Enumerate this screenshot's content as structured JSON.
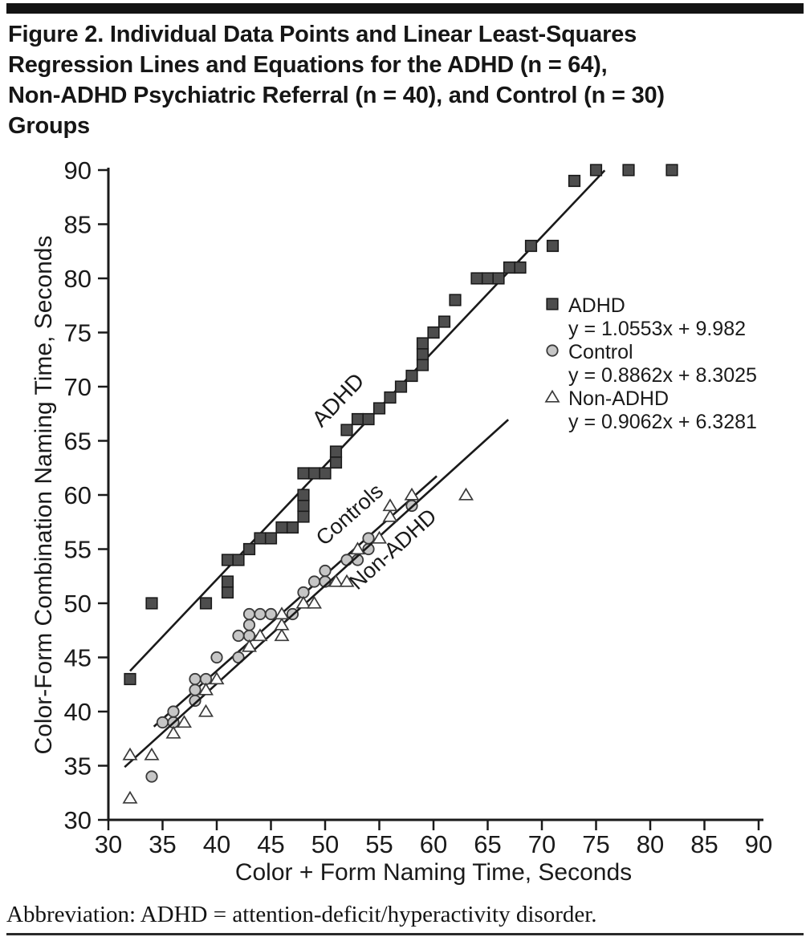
{
  "page": {
    "title": "Figure 2. Individual Data Points and Linear Least-Squares\nRegression Lines and Equations for the ADHD (n = 64),\nNon-ADHD Psychiatric Referral (n = 40), and Control (n = 30)\nGroups",
    "footer": "Abbreviation: ADHD = attention-deficit/hyperactivity disorder."
  },
  "chart_data": {
    "type": "scatter",
    "xlabel": "Color + Form Naming Time, Seconds",
    "ylabel": "Color-Form Combination Naming Time, Seconds",
    "xlim": [
      30,
      90
    ],
    "ylim": [
      30,
      90
    ],
    "tick_step": 5,
    "grid": false,
    "legend_position": "inside-upper-right",
    "axis_color": "#1a1a1a",
    "series": [
      {
        "name": "ADHD",
        "equation": "y = 1.0553x + 9.982",
        "marker": "square",
        "fill": "#4d4d4d",
        "stroke": "#1a1a1a",
        "regression": {
          "slope": 1.0553,
          "intercept": 9.982,
          "x_start": 32.0,
          "x_end": 75.8
        },
        "inline_label": {
          "text": "ADHD",
          "x": 51.7,
          "y": 68.3,
          "angle": -46.5,
          "size": 28
        },
        "points": [
          [
            32,
            43
          ],
          [
            34,
            50
          ],
          [
            39,
            50
          ],
          [
            41,
            51
          ],
          [
            41,
            52
          ],
          [
            41,
            54
          ],
          [
            42,
            54
          ],
          [
            43,
            55
          ],
          [
            44,
            56
          ],
          [
            45,
            56
          ],
          [
            46,
            57
          ],
          [
            47,
            57
          ],
          [
            48,
            58
          ],
          [
            48,
            59
          ],
          [
            48,
            60
          ],
          [
            48,
            62
          ],
          [
            49,
            62
          ],
          [
            50,
            62
          ],
          [
            51,
            63
          ],
          [
            51,
            64
          ],
          [
            52,
            66
          ],
          [
            53,
            67
          ],
          [
            54,
            67
          ],
          [
            55,
            68
          ],
          [
            56,
            69
          ],
          [
            57,
            70
          ],
          [
            58,
            71
          ],
          [
            59,
            72
          ],
          [
            59,
            73
          ],
          [
            59,
            74
          ],
          [
            60,
            75
          ],
          [
            61,
            76
          ],
          [
            62,
            78
          ],
          [
            64,
            80
          ],
          [
            65,
            80
          ],
          [
            66,
            80
          ],
          [
            67,
            81
          ],
          [
            68,
            81
          ],
          [
            69,
            83
          ],
          [
            71,
            83
          ],
          [
            73,
            89
          ],
          [
            75,
            90
          ],
          [
            78,
            90
          ],
          [
            82,
            90
          ]
        ]
      },
      {
        "name": "Control",
        "equation": "y = 0.8862x + 8.3025",
        "marker": "circle",
        "fill": "#c6c6c6",
        "stroke": "#3a3a3a",
        "regression": {
          "slope": 0.8862,
          "intercept": 8.3025,
          "x_start": 34.2,
          "x_end": 60.3
        },
        "inline_label": {
          "text": "Controls",
          "x": 52.7,
          "y": 57.7,
          "angle": -41.5,
          "size": 27
        },
        "points": [
          [
            34,
            34
          ],
          [
            35,
            39
          ],
          [
            36,
            39
          ],
          [
            36,
            40
          ],
          [
            38,
            41
          ],
          [
            38,
            42
          ],
          [
            38,
            43
          ],
          [
            39,
            43
          ],
          [
            40,
            45
          ],
          [
            42,
            45
          ],
          [
            42,
            47
          ],
          [
            43,
            47
          ],
          [
            43,
            48
          ],
          [
            43,
            49
          ],
          [
            44,
            49
          ],
          [
            45,
            49
          ],
          [
            47,
            49
          ],
          [
            48,
            51
          ],
          [
            49,
            52
          ],
          [
            50,
            52
          ],
          [
            50,
            53
          ],
          [
            52,
            54
          ],
          [
            53,
            54
          ],
          [
            54,
            55
          ],
          [
            54,
            56
          ],
          [
            58,
            59
          ]
        ]
      },
      {
        "name": "Non-ADHD",
        "equation": "y = 0.9062x + 6.3281",
        "marker": "triangle",
        "fill": "#fcfcfc",
        "stroke": "#3a3a3a",
        "regression": {
          "slope": 0.9062,
          "intercept": 6.3281,
          "x_start": 31.5,
          "x_end": 66.9
        },
        "inline_label": {
          "text": "Non-ADHD",
          "x": 56.7,
          "y": 54.5,
          "angle": -42.0,
          "size": 27
        },
        "points": [
          [
            32,
            32
          ],
          [
            32,
            36
          ],
          [
            34,
            36
          ],
          [
            36,
            38
          ],
          [
            37,
            39
          ],
          [
            39,
            40
          ],
          [
            39,
            42
          ],
          [
            40,
            43
          ],
          [
            43,
            46
          ],
          [
            44,
            47
          ],
          [
            46,
            47
          ],
          [
            46,
            48
          ],
          [
            46,
            49
          ],
          [
            48,
            50
          ],
          [
            49,
            50
          ],
          [
            51,
            52
          ],
          [
            52,
            52
          ],
          [
            53,
            55
          ],
          [
            55,
            56
          ],
          [
            56,
            58
          ],
          [
            56,
            59
          ],
          [
            58,
            60
          ],
          [
            63,
            60
          ]
        ]
      }
    ]
  }
}
